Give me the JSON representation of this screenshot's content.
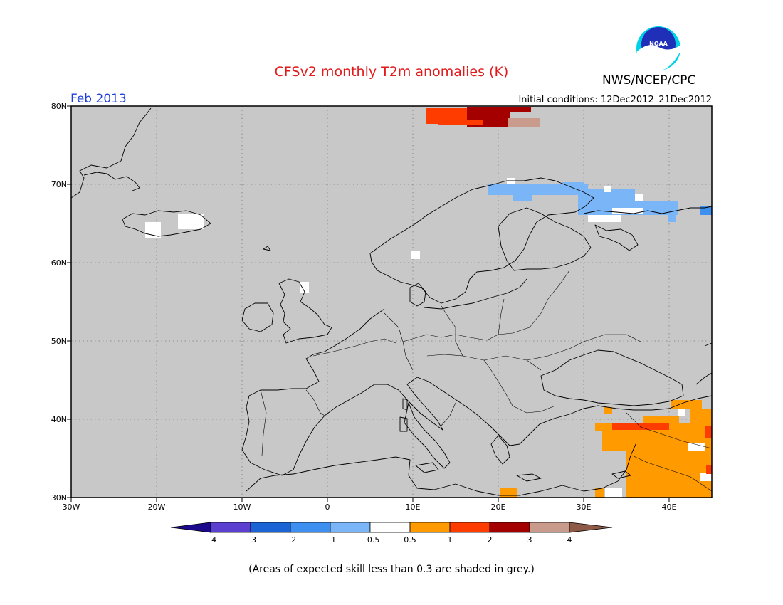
{
  "title": "CFSv2 monthly T2m anomalies (K)",
  "organization": "NWS/NCEP/CPC",
  "logo_text": "NOAA",
  "period": "Feb 2013",
  "initial_conditions": "Initial conditions: 12Dec2012–21Dec2012",
  "note": "(Areas of expected skill less than 0.3 are shaded in grey.)",
  "map": {
    "lon_range": [
      -30,
      45
    ],
    "lat_range": [
      30,
      80
    ],
    "background_color": "#c8c8c8",
    "gridlines": true,
    "lat_labels": [
      "80N",
      "70N",
      "60N",
      "50N",
      "40N",
      "30N"
    ],
    "lon_labels": [
      "30W",
      "20W",
      "10W",
      "0",
      "10E",
      "20E",
      "30E",
      "40E"
    ]
  },
  "colorbar": {
    "labels": [
      "−4",
      "−3",
      "−2",
      "−1",
      "−0.5",
      "0.5",
      "1",
      "2",
      "3",
      "4"
    ],
    "colors": [
      "#1c0a8c",
      "#5a3fd0",
      "#1a64d6",
      "#3d8ff0",
      "#7ab6f7",
      "#ffffff",
      "#ff9a00",
      "#ff3c00",
      "#a50000",
      "#c89b8c",
      "#8c5a46"
    ]
  }
}
